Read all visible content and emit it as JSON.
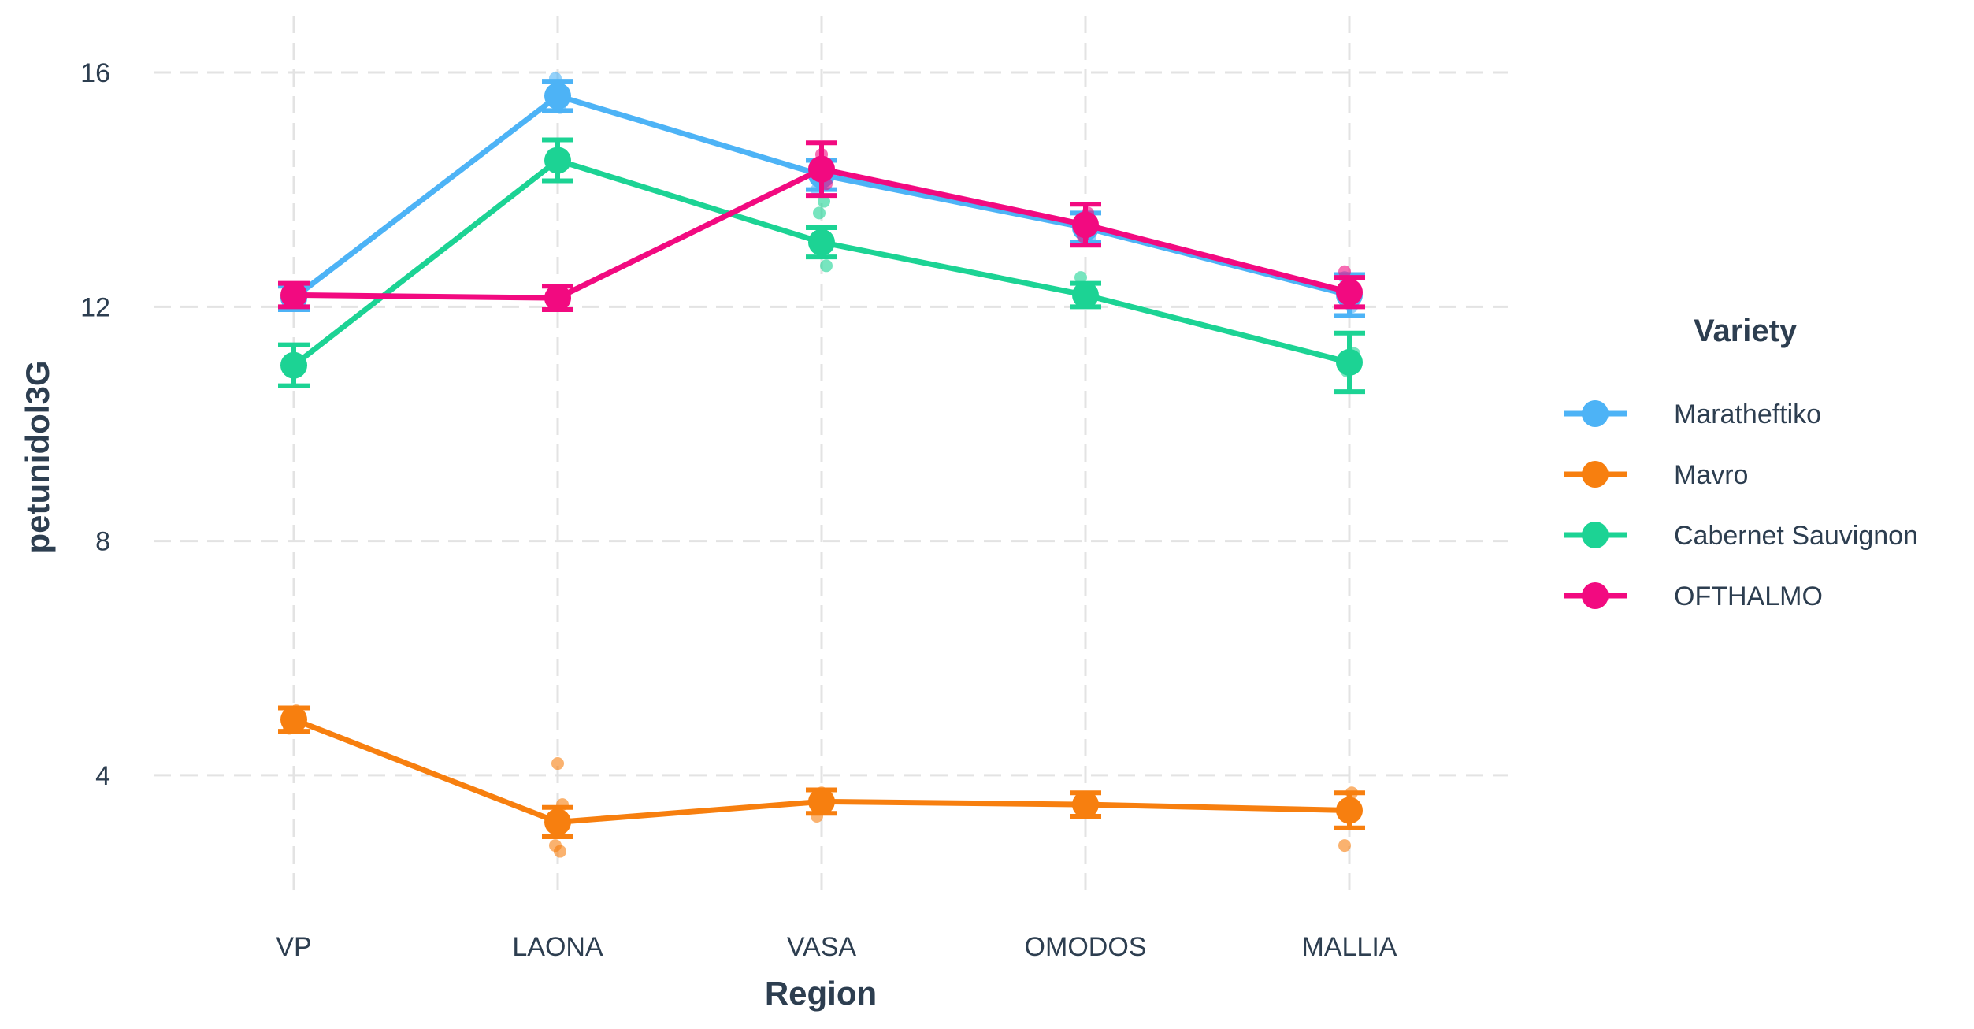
{
  "chart_data": {
    "type": "line",
    "title": "",
    "xlabel": "Region",
    "ylabel": "petunidol3G",
    "categories": [
      "VP",
      "LAONA",
      "VASA",
      "OMODOS",
      "MALLIA"
    ],
    "yticks": [
      4,
      8,
      12,
      16
    ],
    "ylim": [
      1.9,
      16.7
    ],
    "grid": true,
    "legend": {
      "title": "Variety",
      "position": "right"
    },
    "series": [
      {
        "name": "Maratheftiko",
        "color": "#4db3f6",
        "values": [
          12.15,
          15.6,
          14.25,
          13.35,
          12.2
        ],
        "err": [
          0.2,
          0.25,
          0.25,
          0.25,
          0.35
        ],
        "points": [
          [
            0,
            12.1
          ],
          [
            0,
            12.3
          ],
          [
            1,
            15.5
          ],
          [
            1,
            15.9
          ],
          [
            1,
            15.4
          ],
          [
            2,
            14.0
          ],
          [
            2,
            14.4
          ],
          [
            3,
            13.2
          ],
          [
            3,
            13.5
          ],
          [
            4,
            12.0
          ],
          [
            4,
            12.5
          ]
        ]
      },
      {
        "name": "Mavro",
        "color": "#f77f0f",
        "values": [
          4.95,
          3.2,
          3.55,
          3.5,
          3.4
        ],
        "err": [
          0.2,
          0.25,
          0.2,
          0.2,
          0.3
        ],
        "points": [
          [
            0,
            5.1
          ],
          [
            0,
            4.8
          ],
          [
            1,
            4.2
          ],
          [
            1,
            3.5
          ],
          [
            1,
            2.8
          ],
          [
            1,
            2.7
          ],
          [
            2,
            3.3
          ],
          [
            2,
            3.7
          ],
          [
            3,
            3.4
          ],
          [
            3,
            3.6
          ],
          [
            4,
            3.7
          ],
          [
            4,
            2.8
          ]
        ]
      },
      {
        "name": "Cabernet Sauvignon",
        "color": "#1cd394",
        "values": [
          11.0,
          14.5,
          13.1,
          12.2,
          11.05
        ],
        "err": [
          0.35,
          0.35,
          0.25,
          0.2,
          0.5
        ],
        "points": [
          [
            0,
            11.1
          ],
          [
            0,
            10.9
          ],
          [
            1,
            14.6
          ],
          [
            1,
            14.4
          ],
          [
            2,
            12.7
          ],
          [
            2,
            13.6
          ],
          [
            2,
            13.8
          ],
          [
            3,
            12.5
          ],
          [
            3,
            12.1
          ],
          [
            4,
            11.2
          ],
          [
            4,
            10.9
          ]
        ]
      },
      {
        "name": "OFTHALMO",
        "color": "#f20a80",
        "values": [
          12.2,
          12.15,
          14.35,
          13.4,
          12.25
        ],
        "err": [
          0.2,
          0.2,
          0.45,
          0.35,
          0.25
        ],
        "points": [
          [
            0,
            12.3
          ],
          [
            0,
            12.1
          ],
          [
            1,
            12.2
          ],
          [
            1,
            12.1
          ],
          [
            2,
            14.6
          ],
          [
            2,
            14.1
          ],
          [
            3,
            13.2
          ],
          [
            3,
            13.6
          ],
          [
            4,
            12.6
          ],
          [
            4,
            12.1
          ]
        ]
      }
    ]
  }
}
